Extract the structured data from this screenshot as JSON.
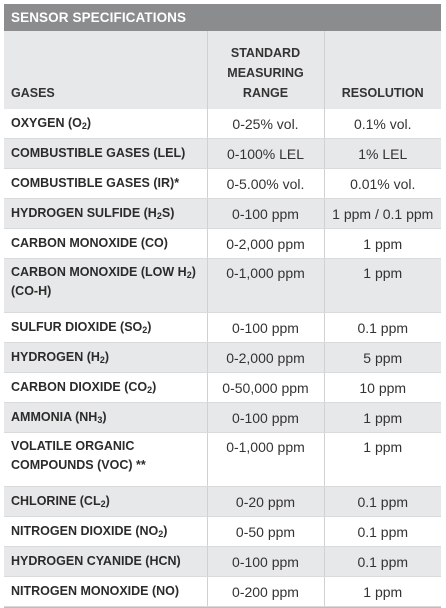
{
  "title": "SENSOR SPECIFICATIONS",
  "headers": {
    "gases": "GASES",
    "range_line1": "STANDARD",
    "range_line2": "MEASURING",
    "range_line3": "RANGE",
    "resolution": "RESOLUTION"
  },
  "rows": [
    {
      "gas_pre": "OXYGEN (O",
      "gas_sub": "2",
      "gas_post": ")",
      "range": "0-25% vol.",
      "resolution": "0.1% vol."
    },
    {
      "gas_pre": "COMBUSTIBLE GASES (LEL)",
      "gas_sub": "",
      "gas_post": "",
      "range": "0-100% LEL",
      "resolution": "1% LEL"
    },
    {
      "gas_pre": "COMBUSTIBLE GASES (IR)*",
      "gas_sub": "",
      "gas_post": "",
      "range": "0-5.00% vol.",
      "resolution": "0.01% vol."
    },
    {
      "gas_pre": "HYDROGEN SULFIDE (H",
      "gas_sub": "2",
      "gas_post": "S)",
      "range": "0-100 ppm",
      "resolution": "1 ppm / 0.1 ppm"
    },
    {
      "gas_pre": "CARBON MONOXIDE (CO)",
      "gas_sub": "",
      "gas_post": "",
      "range": "0-2,000 ppm",
      "resolution": "1 ppm"
    },
    {
      "gas_pre": "CARBON MONOXIDE (LOW H",
      "gas_sub": "2",
      "gas_post": ")",
      "gas_line2": "(CO-H)",
      "range": "0-1,000 ppm",
      "resolution": "1 ppm"
    },
    {
      "gas_pre": "SULFUR DIOXIDE (SO",
      "gas_sub": "2",
      "gas_post": ")",
      "range": "0-100 ppm",
      "resolution": "0.1 ppm"
    },
    {
      "gas_pre": "HYDROGEN (H",
      "gas_sub": "2",
      "gas_post": ")",
      "range": "0-2,000 ppm",
      "resolution": "5 ppm"
    },
    {
      "gas_pre": "CARBON DIOXIDE (CO",
      "gas_sub": "2",
      "gas_post": ")",
      "range": "0-50,000 ppm",
      "resolution": "10 ppm"
    },
    {
      "gas_pre": "AMMONIA (NH",
      "gas_sub": "3",
      "gas_post": ")",
      "range": "0-100 ppm",
      "resolution": "1 ppm"
    },
    {
      "gas_pre": "VOLATILE ORGANIC",
      "gas_sub": "",
      "gas_post": "",
      "gas_line2": "COMPOUNDS (VOC) **",
      "range": "0-1,000 ppm",
      "resolution": "1 ppm"
    },
    {
      "gas_pre": "CHLORINE (CL",
      "gas_sub": "2",
      "gas_post": ")",
      "range": "0-20 ppm",
      "resolution": "0.1 ppm"
    },
    {
      "gas_pre": "NITROGEN DIOXIDE (NO",
      "gas_sub": "2",
      "gas_post": ")",
      "range": "0-50 ppm",
      "resolution": "0.1 ppm"
    },
    {
      "gas_pre": "HYDROGEN CYANIDE (HCN)",
      "gas_sub": "",
      "gas_post": "",
      "range": "0-100 ppm",
      "resolution": "0.1 ppm"
    },
    {
      "gas_pre": "NITROGEN MONOXIDE (NO)",
      "gas_sub": "",
      "gas_post": "",
      "range": "0-200 ppm",
      "resolution": "1 ppm"
    }
  ]
}
